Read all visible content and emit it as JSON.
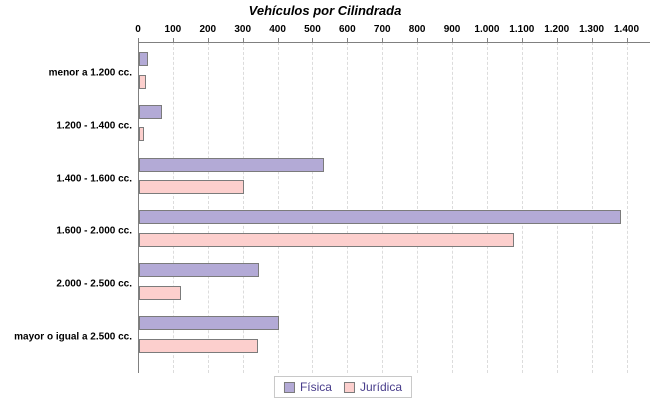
{
  "chart_data": {
    "type": "bar",
    "orientation": "horizontal",
    "title": "Vehículos por Cilindrada",
    "categories": [
      "menor a 1.200 cc.",
      "1.200 - 1.400 cc.",
      "1.400 - 1.600 cc.",
      "1.600 - 2.000 cc.",
      "2.000 - 2.500 cc.",
      "mayor o igual a 2.500 cc."
    ],
    "series": [
      {
        "name": "Física",
        "color": "#b3aad6",
        "values": [
          25,
          65,
          530,
          1380,
          345,
          400
        ]
      },
      {
        "name": "Jurídica",
        "color": "#fccfcd",
        "values": [
          20,
          15,
          300,
          1075,
          120,
          340
        ]
      }
    ],
    "x_axis": {
      "position": "top",
      "min": 0,
      "max": 1400,
      "tick_interval": 100,
      "tick_labels": [
        "0",
        "100",
        "200",
        "300",
        "400",
        "500",
        "600",
        "700",
        "800",
        "900",
        "1.000",
        "1.100",
        "1.200",
        "1.300",
        "1.400"
      ]
    },
    "legend": {
      "position": "bottom",
      "entries": [
        "Física",
        "Jurídica"
      ]
    },
    "grid": "vertical-dashed",
    "colors": {
      "background": "#ffffff",
      "title_text": "#000000",
      "axis_line": "#808080",
      "gridline": "#dcdcdc",
      "bar_border": "#7b7b7b",
      "legend_border": "#c8c8c8",
      "legend_text": "#483d8b",
      "fisica_fill": "#b3aad6",
      "juridica_fill": "#fccfcd"
    }
  }
}
